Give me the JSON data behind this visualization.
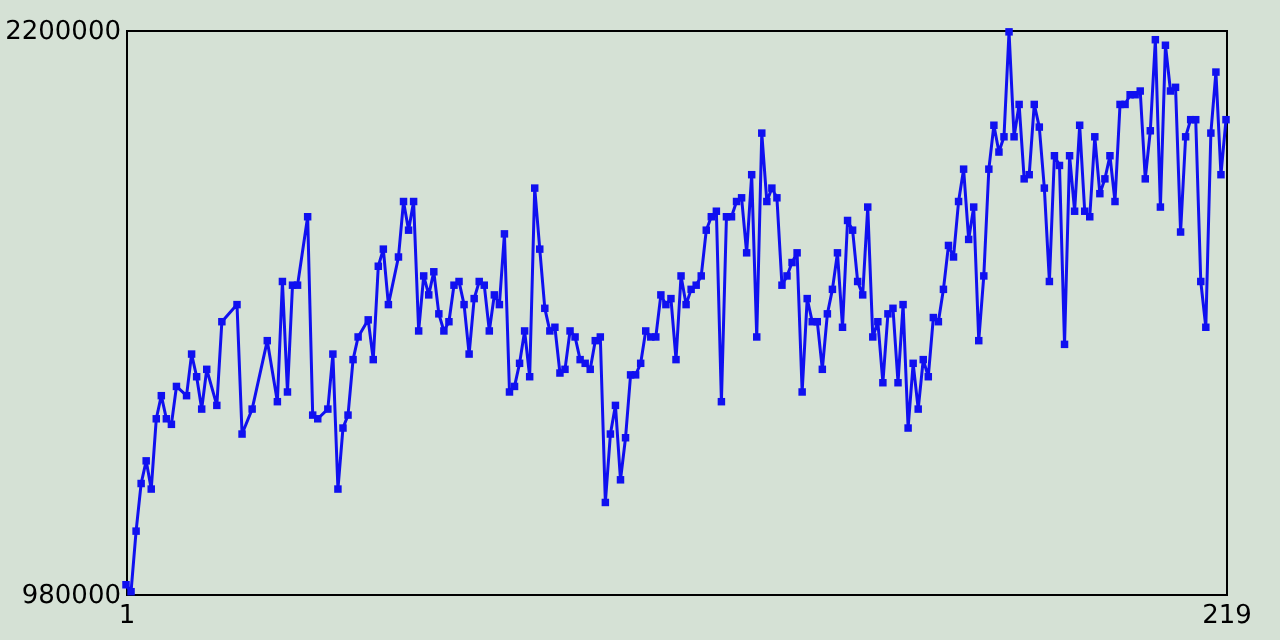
{
  "chart_data": {
    "type": "line",
    "x": [
      1,
      2,
      3,
      4,
      5,
      6,
      7,
      8,
      9,
      10,
      11,
      13,
      14,
      15,
      16,
      17,
      19,
      20,
      23,
      24,
      26,
      29,
      31,
      32,
      33,
      34,
      35,
      37,
      38,
      39,
      41,
      42,
      43,
      44,
      45,
      46,
      47,
      49,
      50,
      51,
      52,
      53,
      55,
      56,
      57,
      58,
      59,
      60,
      61,
      62,
      63,
      64,
      65,
      66,
      67,
      68,
      69,
      70,
      71,
      72,
      73,
      74,
      75,
      76,
      77,
      78,
      79,
      80,
      81,
      82,
      83,
      84,
      85,
      86,
      87,
      88,
      89,
      90,
      91,
      92,
      93,
      94,
      95,
      96,
      97,
      98,
      99,
      100,
      101,
      102,
      103,
      104,
      105,
      106,
      107,
      108,
      109,
      110,
      111,
      112,
      113,
      114,
      115,
      116,
      117,
      118,
      119,
      120,
      121,
      122,
      123,
      124,
      125,
      126,
      127,
      128,
      129,
      130,
      131,
      132,
      133,
      134,
      135,
      136,
      137,
      138,
      139,
      140,
      141,
      142,
      143,
      144,
      145,
      146,
      147,
      148,
      149,
      150,
      151,
      152,
      153,
      154,
      155,
      156,
      157,
      158,
      159,
      160,
      161,
      162,
      163,
      164,
      165,
      166,
      167,
      168,
      169,
      170,
      171,
      172,
      173,
      174,
      175,
      176,
      177,
      178,
      179,
      180,
      181,
      182,
      183,
      184,
      185,
      186,
      187,
      188,
      189,
      190,
      191,
      192,
      193,
      194,
      195,
      196,
      197,
      198,
      199,
      200,
      201,
      202,
      203,
      204,
      205,
      206,
      207,
      208,
      209,
      210,
      211,
      212,
      213,
      214,
      215,
      216,
      217,
      218,
      219
    ],
    "series": [
      {
        "color": "#1010f0",
        "values": [
          1000000,
          985000,
          1116000,
          1219000,
          1268000,
          1207000,
          1359000,
          1409000,
          1359000,
          1347000,
          1429000,
          1409000,
          1499000,
          1450000,
          1380000,
          1466000,
          1388000,
          1569000,
          1606000,
          1326000,
          1380000,
          1528000,
          1396000,
          1656000,
          1417000,
          1648000,
          1648000,
          1796000,
          1367000,
          1359000,
          1380000,
          1499000,
          1207000,
          1339000,
          1367000,
          1487000,
          1536000,
          1573000,
          1487000,
          1689000,
          1726000,
          1606000,
          1709000,
          1829000,
          1767000,
          1829000,
          1549000,
          1668000,
          1627000,
          1677000,
          1586000,
          1549000,
          1569000,
          1648000,
          1656000,
          1606000,
          1499000,
          1619000,
          1656000,
          1648000,
          1549000,
          1627000,
          1606000,
          1759000,
          1417000,
          1429000,
          1479000,
          1549000,
          1450000,
          1858000,
          1726000,
          1598000,
          1549000,
          1557000,
          1458000,
          1466000,
          1549000,
          1536000,
          1487000,
          1479000,
          1466000,
          1528000,
          1536000,
          1178000,
          1326000,
          1388000,
          1227000,
          1318000,
          1454000,
          1454000,
          1479000,
          1549000,
          1536000,
          1536000,
          1627000,
          1606000,
          1619000,
          1487000,
          1668000,
          1606000,
          1639000,
          1648000,
          1668000,
          1767000,
          1796000,
          1808000,
          1396000,
          1796000,
          1796000,
          1829000,
          1837000,
          1718000,
          1887000,
          1536000,
          1977000,
          1829000,
          1858000,
          1837000,
          1648000,
          1668000,
          1697000,
          1718000,
          1417000,
          1619000,
          1569000,
          1569000,
          1466000,
          1586000,
          1639000,
          1718000,
          1557000,
          1788000,
          1767000,
          1656000,
          1627000,
          1817000,
          1536000,
          1569000,
          1437000,
          1586000,
          1598000,
          1437000,
          1606000,
          1339000,
          1479000,
          1380000,
          1487000,
          1450000,
          1578000,
          1569000,
          1639000,
          1734000,
          1709000,
          1829000,
          1899000,
          1747000,
          1817000,
          1528000,
          1668000,
          1899000,
          1994000,
          1936000,
          1969000,
          2196000,
          1969000,
          2039000,
          1878000,
          1887000,
          2039000,
          1990000,
          1858000,
          1656000,
          1928000,
          1907000,
          1520000,
          1928000,
          1808000,
          1994000,
          1808000,
          1796000,
          1969000,
          1846000,
          1878000,
          1928000,
          1829000,
          2039000,
          2039000,
          2060000,
          2060000,
          2068000,
          1878000,
          1982000,
          2179000,
          1817000,
          2167000,
          2068000,
          2076000,
          1763000,
          1969000,
          2006000,
          2006000,
          1656000,
          1557000,
          1977000,
          2109000,
          1887000,
          2006000
        ]
      }
    ],
    "xlim": [
      1,
      219
    ],
    "ylim": [
      980000,
      2200000
    ],
    "xticks": [
      1,
      219
    ],
    "yticks": [
      980000,
      2200000
    ],
    "grid": false,
    "marker": "square",
    "line_style": "solid"
  }
}
